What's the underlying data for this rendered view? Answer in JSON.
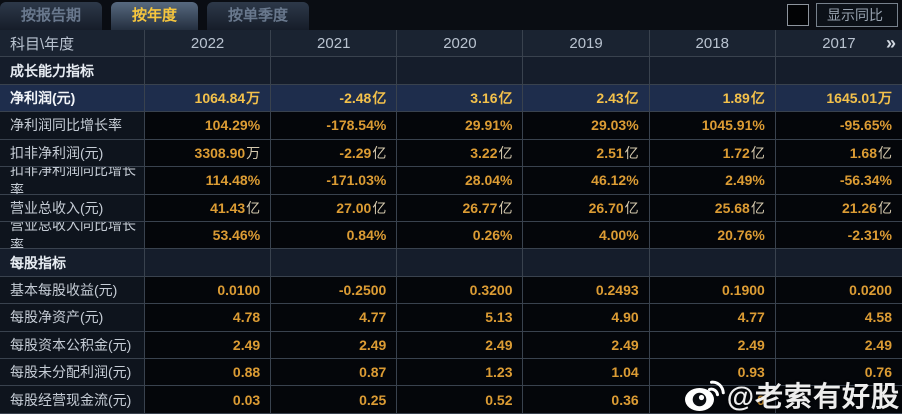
{
  "tabs": [
    {
      "label": "按报告期",
      "active": false
    },
    {
      "label": "按年度",
      "active": true
    },
    {
      "label": "按单季度",
      "active": false
    }
  ],
  "controls": {
    "show_yoy_label": "显示同比",
    "show_yoy_checked": false
  },
  "table": {
    "corner_label": "科目\\年度",
    "years": [
      "2022",
      "2021",
      "2020",
      "2019",
      "2018",
      "2017"
    ],
    "more_icon": "»",
    "rows": [
      {
        "type": "section",
        "label": "成长能力指标"
      },
      {
        "type": "data",
        "highlight": true,
        "label": "净利润(元)",
        "values": [
          "1064.84万",
          "-2.48亿",
          "3.16亿",
          "2.43亿",
          "1.89亿",
          "1645.01万"
        ]
      },
      {
        "type": "data",
        "label": "净利润同比增长率",
        "values": [
          "104.29%",
          "-178.54%",
          "29.91%",
          "29.03%",
          "1045.91%",
          "-95.65%"
        ]
      },
      {
        "type": "data",
        "label": "扣非净利润(元)",
        "values": [
          "3308.90万",
          "-2.29亿",
          "3.22亿",
          "2.51亿",
          "1.72亿",
          "1.68亿"
        ]
      },
      {
        "type": "data",
        "label": "扣非净利润同比增长率",
        "values": [
          "114.48%",
          "-171.03%",
          "28.04%",
          "46.12%",
          "2.49%",
          "-56.34%"
        ]
      },
      {
        "type": "data",
        "label": "营业总收入(元)",
        "values": [
          "41.43亿",
          "27.00亿",
          "26.77亿",
          "26.70亿",
          "25.68亿",
          "21.26亿"
        ]
      },
      {
        "type": "data",
        "label": "营业总收入同比增长率",
        "values": [
          "53.46%",
          "0.84%",
          "0.26%",
          "4.00%",
          "20.76%",
          "-2.31%"
        ]
      },
      {
        "type": "section",
        "label": "每股指标"
      },
      {
        "type": "data",
        "label": "基本每股收益(元)",
        "values": [
          "0.0100",
          "-0.2500",
          "0.3200",
          "0.2493",
          "0.1900",
          "0.0200"
        ]
      },
      {
        "type": "data",
        "label": "每股净资产(元)",
        "values": [
          "4.78",
          "4.77",
          "5.13",
          "4.90",
          "4.77",
          "4.58"
        ]
      },
      {
        "type": "data",
        "label": "每股资本公积金(元)",
        "values": [
          "2.49",
          "2.49",
          "2.49",
          "2.49",
          "2.49",
          "2.49"
        ]
      },
      {
        "type": "data",
        "label": "每股未分配利润(元)",
        "values": [
          "0.88",
          "0.87",
          "1.23",
          "1.04",
          "0.93",
          "0.76"
        ]
      },
      {
        "type": "data",
        "label": "每股经营现金流(元)",
        "values": [
          "0.03",
          "0.25",
          "0.52",
          "0.36",
          "0",
          ""
        ],
        "obscured_by_watermark": [
          4,
          5
        ]
      }
    ]
  },
  "watermark": {
    "text": "@老索有好股"
  },
  "colors": {
    "background": "#080b10",
    "active_tab_text": "#f6c63e",
    "inactive_tab_text": "#69788d",
    "header_bg": "#1a2331",
    "section_bg": "#151d2b",
    "highlight_row_bg": "#1e2d4c",
    "value_orange": "#dc9c34",
    "highlight_gold": "#f3c14b",
    "grid_border": "#39424e"
  }
}
